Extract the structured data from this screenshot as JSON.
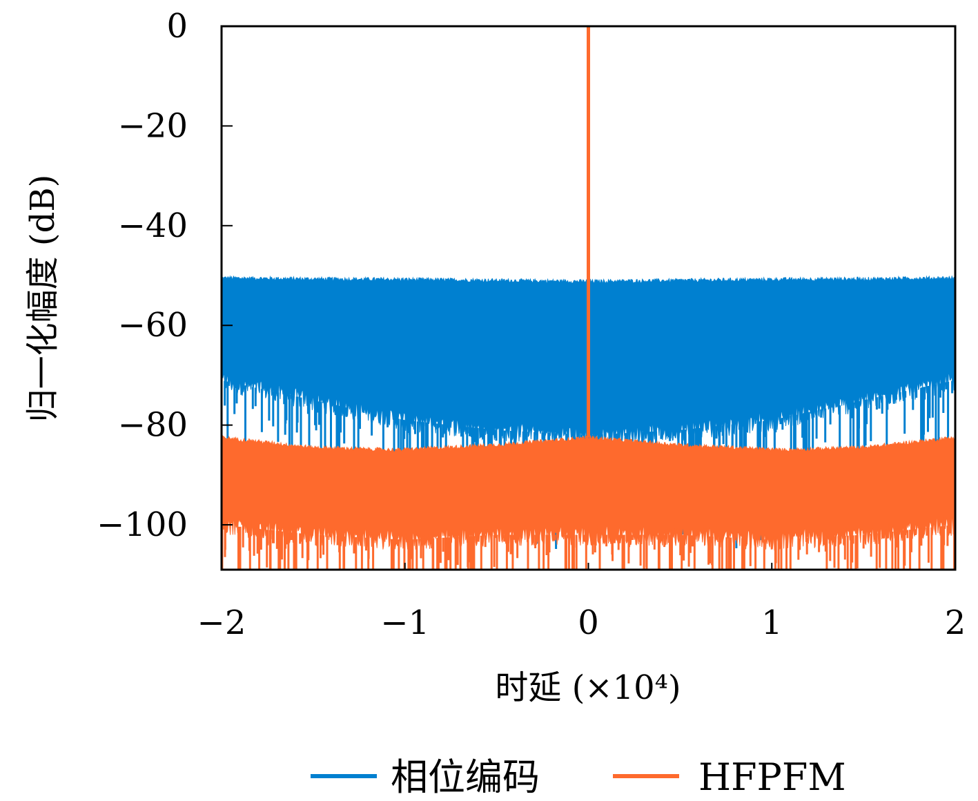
{
  "chart_data": {
    "type": "line",
    "title": "",
    "xlabel": "时延 (×10⁴)",
    "ylabel": "归一化幅度 (dB)",
    "xlim": [
      -2,
      2
    ],
    "ylim": [
      -109,
      0
    ],
    "x_ticks": [
      -2,
      -1,
      0,
      1,
      2
    ],
    "x_tick_labels": [
      "−2",
      "−1",
      "0",
      "1",
      "2"
    ],
    "y_ticks": [
      0,
      -20,
      -40,
      -60,
      -80,
      -100
    ],
    "y_tick_labels": [
      "0",
      "−20",
      "−40",
      "−60",
      "−80",
      "−100"
    ],
    "grid": false,
    "legend_position": "bottom",
    "series": [
      {
        "name": "相位编码",
        "color": "#0080d0",
        "peak": {
          "x": 0,
          "y": 0
        },
        "upper_envelope": [
          [
            -2,
            -50.5
          ],
          [
            -1.5,
            -50.7
          ],
          [
            -1,
            -50.8
          ],
          [
            -0.5,
            -51
          ],
          [
            0,
            -51.2
          ],
          [
            0.5,
            -51
          ],
          [
            1,
            -50.8
          ],
          [
            1.5,
            -50.7
          ],
          [
            2,
            -50.5
          ]
        ],
        "lower_envelope": [
          [
            -2,
            -72
          ],
          [
            -1.5,
            -76
          ],
          [
            -1,
            -80
          ],
          [
            -0.5,
            -82
          ],
          [
            0,
            -83
          ],
          [
            0.5,
            -82
          ],
          [
            1,
            -80
          ],
          [
            1.5,
            -76
          ],
          [
            2,
            -72
          ]
        ]
      },
      {
        "name": "HFPFM",
        "color": "#fe6a2d",
        "peak": {
          "x": 0,
          "y": 0
        },
        "upper_envelope": [
          [
            -2,
            -82.5
          ],
          [
            -1.5,
            -84.5
          ],
          [
            -1.05,
            -85
          ],
          [
            -0.5,
            -84
          ],
          [
            0,
            -82.5
          ],
          [
            0.5,
            -84
          ],
          [
            1.05,
            -85
          ],
          [
            1.5,
            -84.5
          ],
          [
            2,
            -82.5
          ]
        ],
        "lower_envelope": [
          [
            -2,
            -101
          ],
          [
            -1.5,
            -103
          ],
          [
            -1,
            -104
          ],
          [
            -0.5,
            -103
          ],
          [
            0,
            -103
          ],
          [
            0.5,
            -103
          ],
          [
            1,
            -104
          ],
          [
            1.5,
            -103
          ],
          [
            2,
            -101
          ]
        ]
      }
    ]
  }
}
